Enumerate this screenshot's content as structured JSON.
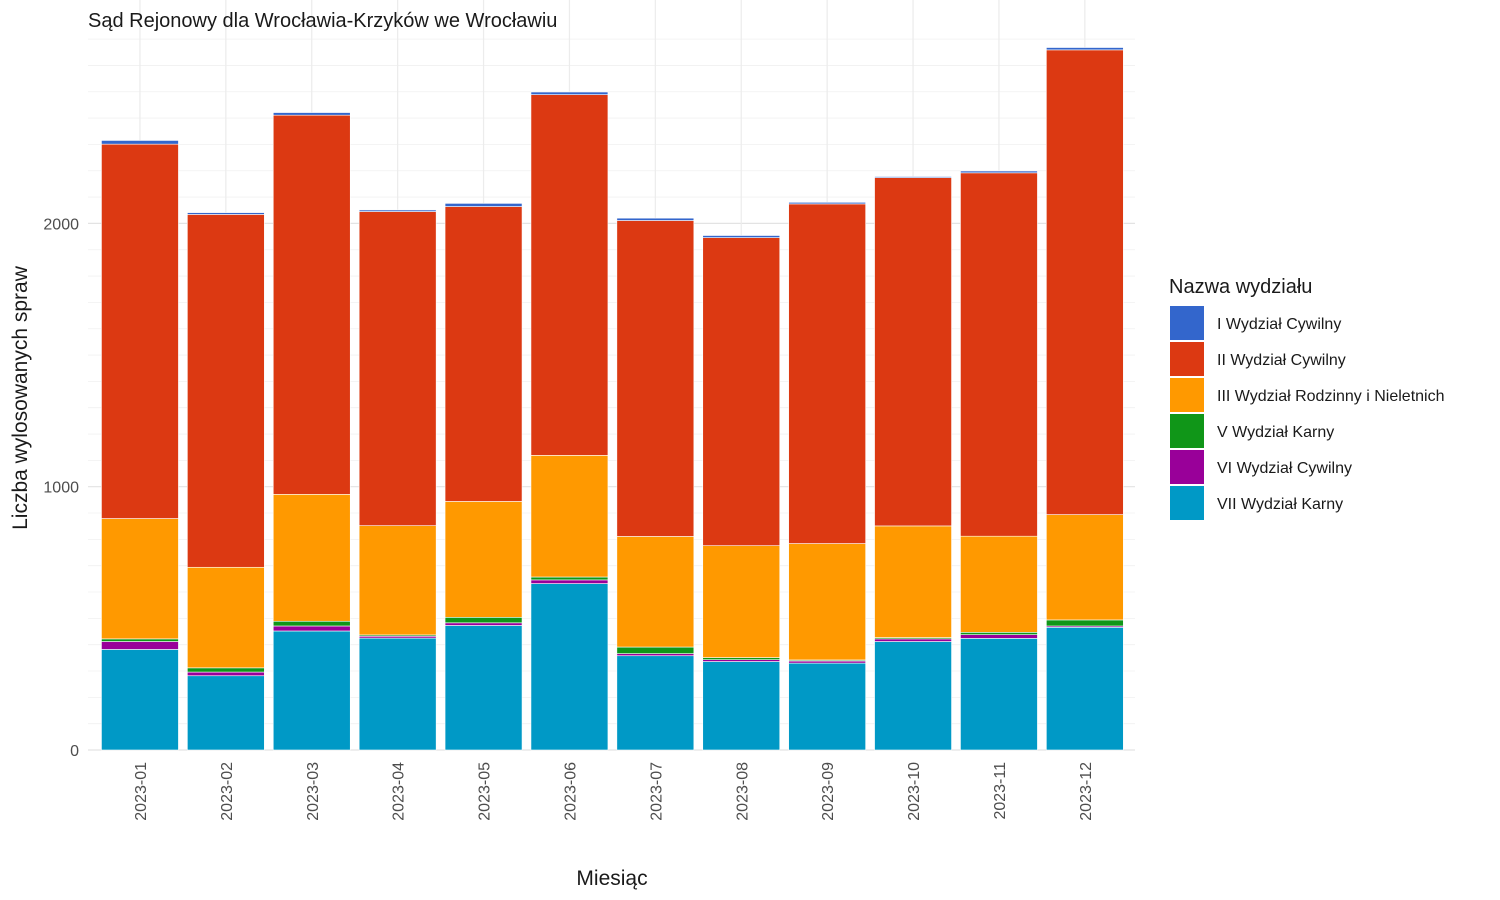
{
  "chart_data": {
    "type": "bar",
    "stacked": true,
    "title": "Sąd Rejonowy dla Wrocławia-Krzyków we Wrocławiu",
    "xlabel": "Miesiąc",
    "ylabel": "Liczba wylosowanych spraw",
    "ylim": [
      0,
      2750
    ],
    "yticks": [
      0,
      1000,
      2000
    ],
    "ytick_labels": [
      "0",
      "1000",
      "2000"
    ],
    "grid": true,
    "legend_title": "Nazwa wydziału",
    "legend_position": "right",
    "categories": [
      "2023-01",
      "2023-02",
      "2023-03",
      "2023-04",
      "2023-05",
      "2023-06",
      "2023-07",
      "2023-08",
      "2023-09",
      "2023-10",
      "2023-11",
      "2023-12"
    ],
    "series": [
      {
        "name": "VII Wydział Karny",
        "color": "#0099C6",
        "values": [
          382,
          282,
          452,
          425,
          473,
          632,
          358,
          336,
          330,
          412,
          424,
          466
        ]
      },
      {
        "name": "VI Wydział Cywilny",
        "color": "#990099",
        "values": [
          30,
          14,
          19,
          7,
          10,
          14,
          8,
          7,
          8,
          10,
          14,
          5
        ]
      },
      {
        "name": "V Wydział Karny",
        "color": "#109618",
        "values": [
          10,
          16,
          18,
          5,
          21,
          11,
          25,
          8,
          4,
          5,
          9,
          23
        ]
      },
      {
        "name": "III Wydział Rodzinny i Nieletnich",
        "color": "#FF9900",
        "values": [
          457,
          382,
          482,
          415,
          440,
          462,
          420,
          425,
          442,
          424,
          365,
          400
        ]
      },
      {
        "name": "II Wydział Cywilny",
        "color": "#DC3912",
        "values": [
          1422,
          1340,
          1440,
          1193,
          1120,
          1370,
          1200,
          1170,
          1290,
          1323,
          1380,
          1765
        ]
      },
      {
        "name": "I Wydział Cywilny",
        "color": "#3366CC",
        "values": [
          14,
          7,
          10,
          6,
          12,
          10,
          9,
          8,
          6,
          4,
          7,
          9
        ]
      }
    ]
  }
}
